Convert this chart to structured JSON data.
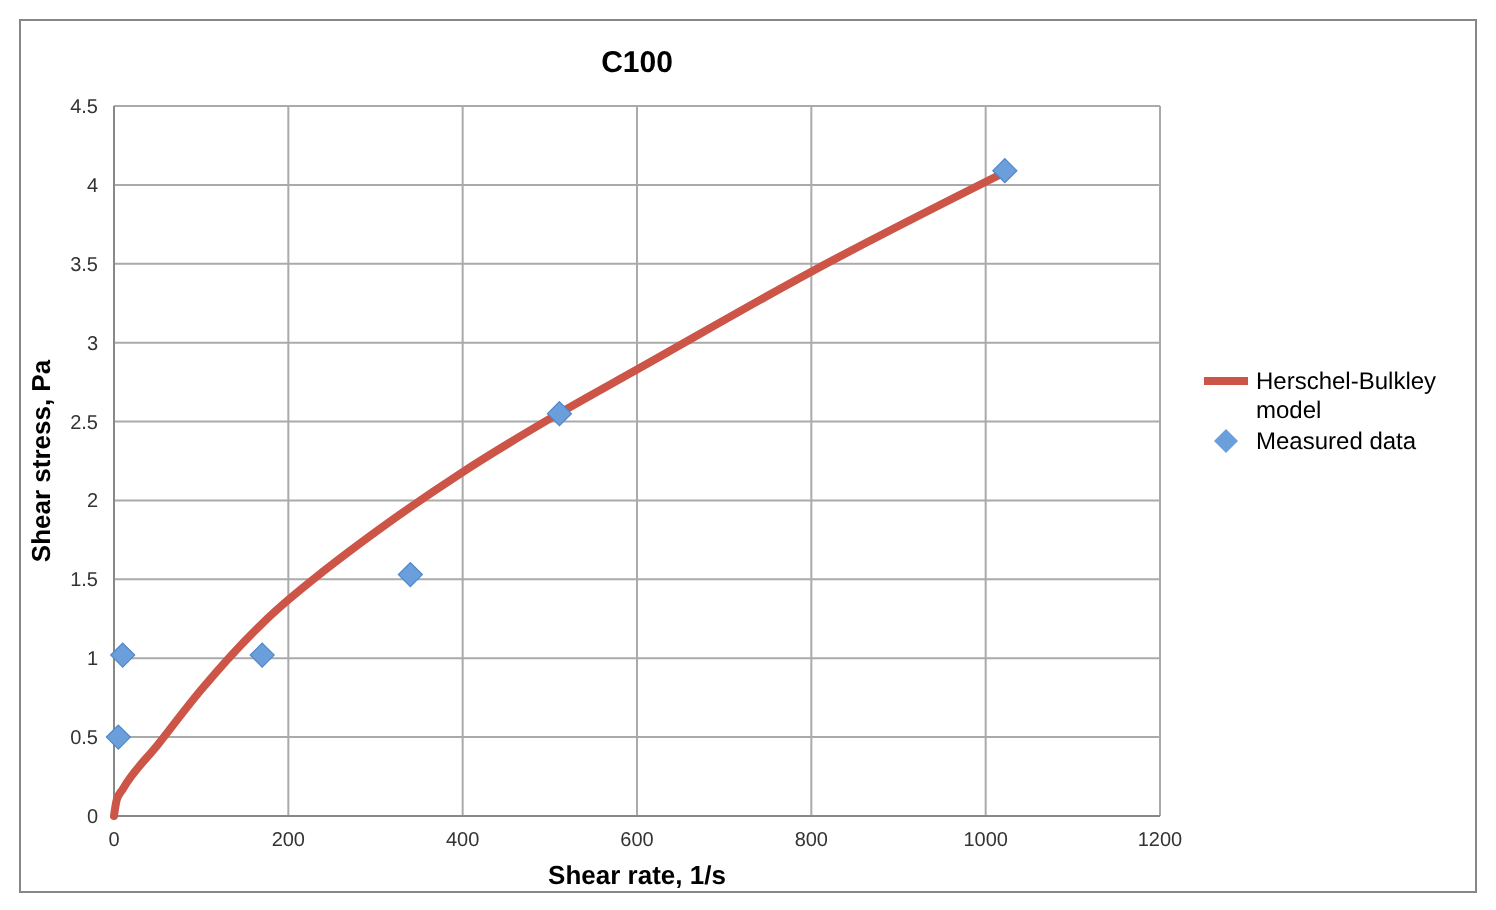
{
  "chart_data": {
    "type": "scatter",
    "title": "C100",
    "xlabel": "Shear rate, 1/s",
    "ylabel": "Shear stress, Pa",
    "xlim": [
      0,
      1200
    ],
    "xticks": [
      0,
      200,
      400,
      600,
      800,
      1000,
      1200
    ],
    "ylim": [
      0,
      4.5
    ],
    "yticks": [
      0,
      0.5,
      1,
      1.5,
      2,
      2.5,
      3,
      3.5,
      4,
      4.5
    ],
    "grid": true,
    "legend": "right",
    "series": [
      {
        "name": "Herschel-Bulkley model",
        "type": "line",
        "color": "#cc5548",
        "marker": "none",
        "x": [
          0,
          3,
          10,
          50,
          100,
          170,
          200,
          240,
          300,
          400,
          510,
          600,
          800,
          1022
        ],
        "values": [
          0,
          0.1,
          0.17,
          0.45,
          0.8,
          1.22,
          1.37,
          1.55,
          1.8,
          2.18,
          2.55,
          2.83,
          3.45,
          4.08
        ]
      },
      {
        "name": "Measured data",
        "type": "scatter",
        "color": "#6a9fdc",
        "marker": "diamond",
        "x": [
          5,
          10,
          170,
          340,
          511,
          1022
        ],
        "values": [
          0.5,
          1.02,
          1.02,
          1.53,
          2.55,
          4.09
        ]
      }
    ]
  }
}
